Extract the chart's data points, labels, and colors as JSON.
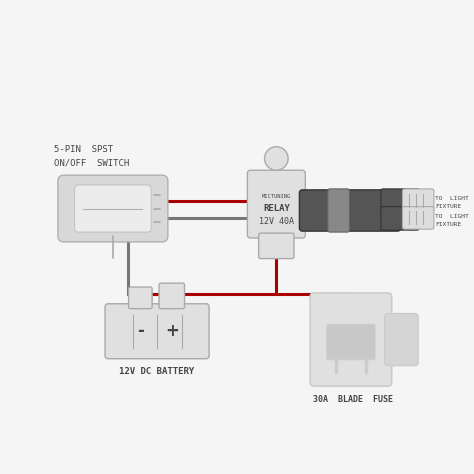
{
  "bg_color": "#f5f5f5",
  "wire_red": "#aa0000",
  "wire_gray": "#777777",
  "wire_dark": "#444444",
  "component_color": "#e0e0e0",
  "component_edge": "#aaaaaa",
  "component_edge2": "#cccccc",
  "text_color": "#444444",
  "title_label1": "5-PIN  SPST",
  "title_label2": "ON/OFF  SWITCH",
  "relay_label1": "RELAY",
  "relay_label2": "12V 40A",
  "relay_brand": "MICTUNING",
  "battery_label": "12V DC BATTERY",
  "fuse_label": "30A  BLADE  FUSE",
  "light_label1": "TO  LIGHT",
  "light_label2": "FIXTURE",
  "light_label3": "TO  LIGHT",
  "light_label4": "FIXTURE"
}
